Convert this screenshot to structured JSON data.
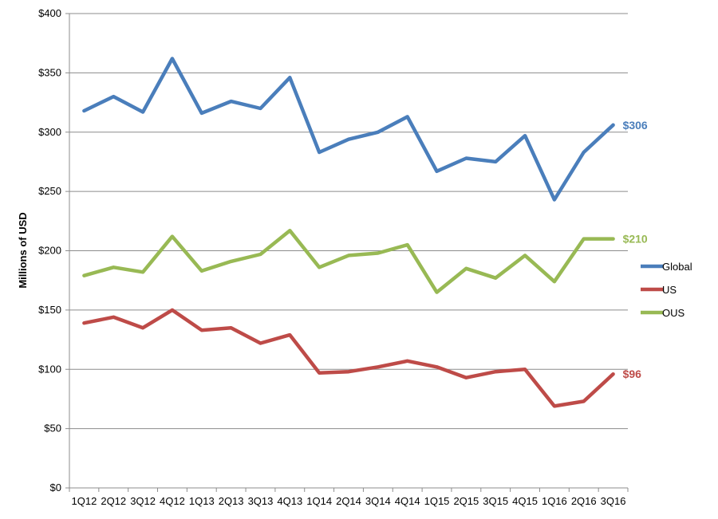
{
  "chart_data": {
    "type": "line",
    "ylabel": "Millions of USD",
    "ylim": [
      0,
      400
    ],
    "yticks": [
      0,
      50,
      100,
      150,
      200,
      250,
      300,
      350,
      400
    ],
    "ytick_labels": [
      "$0",
      "$50",
      "$100",
      "$150",
      "$200",
      "$250",
      "$300",
      "$350",
      "$400"
    ],
    "grid": true,
    "legend_position": "right",
    "categories": [
      "1Q12",
      "2Q12",
      "3Q12",
      "4Q12",
      "1Q13",
      "2Q13",
      "3Q13",
      "4Q13",
      "1Q14",
      "2Q14",
      "3Q14",
      "4Q14",
      "1Q15",
      "2Q15",
      "3Q15",
      "4Q15",
      "1Q16",
      "2Q16",
      "3Q16"
    ],
    "series": [
      {
        "name": "Global",
        "color": "#4a7ebb",
        "values": [
          318,
          330,
          317,
          362,
          316,
          326,
          320,
          346,
          283,
          294,
          300,
          313,
          267,
          278,
          275,
          297,
          243,
          283,
          306
        ],
        "end_label": "$306"
      },
      {
        "name": "US",
        "color": "#be4b48",
        "values": [
          139,
          144,
          135,
          150,
          133,
          135,
          122,
          129,
          97,
          98,
          102,
          107,
          102,
          93,
          98,
          100,
          69,
          73,
          96
        ],
        "end_label": "$96"
      },
      {
        "name": "OUS",
        "color": "#98b954",
        "values": [
          179,
          186,
          182,
          212,
          183,
          191,
          197,
          217,
          186,
          196,
          198,
          205,
          165,
          185,
          177,
          196,
          174,
          210,
          210
        ],
        "end_label": "$210"
      }
    ]
  }
}
